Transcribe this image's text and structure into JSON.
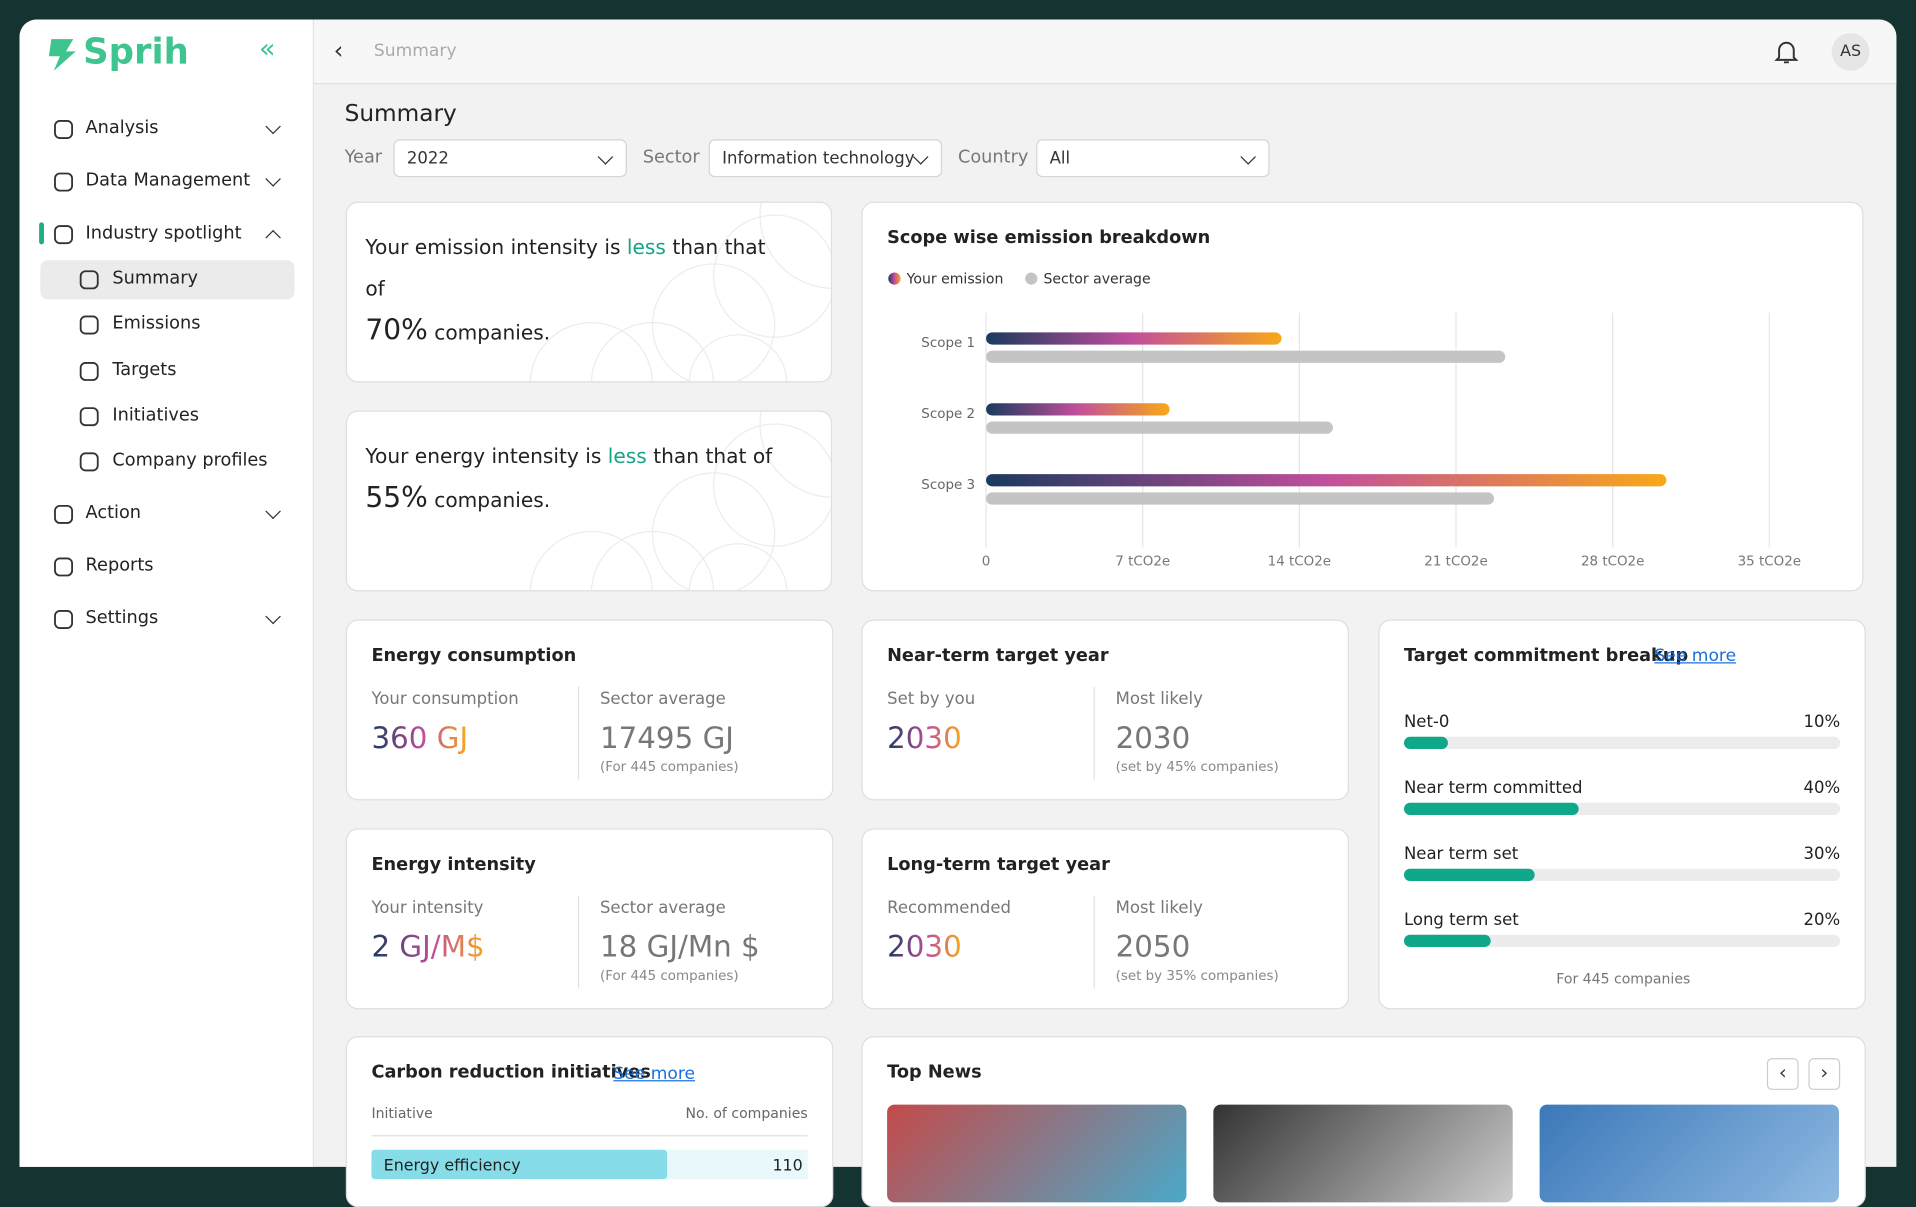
{
  "sidebar": {
    "brand": "Sprih",
    "nav": [
      "Analysis",
      "Data Management",
      "Industry spotlight"
    ],
    "subnav": [
      "Summary",
      "Emissions",
      "Targets",
      "Initiatives",
      "Company profiles"
    ],
    "nav2": [
      "Action",
      "Reports",
      "Settings"
    ]
  },
  "header": {
    "breadcrumb": "Summary",
    "avatar": "AS"
  },
  "page_title": "Summary",
  "filters": [
    {
      "label": "Year",
      "value": "2022"
    },
    {
      "label": "Sector",
      "value": "Information technology"
    },
    {
      "label": "Country",
      "value": "All"
    }
  ],
  "insights": [
    {
      "text": "Your emission intensity is",
      "highlight": "less",
      "rest": "than that of",
      "percent": "70%",
      "tail": "companies."
    },
    {
      "text": "Your energy intensity is",
      "highlight": "less",
      "rest": "than that of",
      "percent": "55%",
      "tail": "companies."
    }
  ],
  "chart_data": {
    "type": "bar",
    "orientation": "horizontal",
    "title": "Scope wise emission breakdown",
    "categories": [
      "Scope 1",
      "Scope 2",
      "Scope 3"
    ],
    "series": [
      {
        "name": "Your emission",
        "gradient": [
          "#1b3a5e",
          "#c24f9c",
          "#f9a817"
        ],
        "values": [
          13.2,
          8.2,
          30.4
        ]
      },
      {
        "name": "Sector average",
        "color": "#c4c4c4",
        "values": [
          23.2,
          15.5,
          22.7
        ]
      }
    ],
    "xlim": [
      0,
      35
    ],
    "xticks": [
      0,
      {
        "value": 7,
        "label": "7 tCO2e"
      },
      {
        "value": 14,
        "label": "14 tCO2e"
      },
      {
        "value": 21,
        "label": "21 tCO2e"
      },
      {
        "value": 28,
        "label": "28 tCO2e"
      },
      {
        "value": 35,
        "label": "35 tCO2e"
      }
    ],
    "grid": true
  },
  "metrics": [
    {
      "title": "Energy consumption",
      "left_label": "Your consumption",
      "left_value": "360 GJ",
      "right_label": "Sector average",
      "right_value": "17495 GJ",
      "right_note": "(For 445 companies)"
    },
    {
      "title": "Near-term target year",
      "left_label": "Set by you",
      "left_value": "2030",
      "right_label": "Most likely",
      "right_value": "2030",
      "right_note": "(set by 45% companies)"
    },
    {
      "title": "Energy intensity",
      "left_label": "Your intensity",
      "left_value": "2 GJ/M$",
      "right_label": "Sector average",
      "right_value": "18 GJ/Mn $",
      "right_note": "(For 445 companies)"
    },
    {
      "title": "Long-term target year",
      "left_label": "Recommended",
      "left_value": "2030",
      "right_label": "Most likely",
      "right_value": "2050",
      "right_note": "(set by 35% companies)"
    }
  ],
  "targets": {
    "title": "Target commitment breakup",
    "link": "See more",
    "color": "#0fa88a",
    "rows": [
      {
        "label": "Net-0",
        "value": 10,
        "value_label": "10%"
      },
      {
        "label": "Near term committed",
        "value": 40,
        "value_label": "40%"
      },
      {
        "label": "Near term set",
        "value": 30,
        "value_label": "30%"
      },
      {
        "label": "Long term set",
        "value": 20,
        "value_label": "20%"
      }
    ],
    "footnote": "For 445 companies"
  },
  "initiatives": {
    "title": "Carbon reduction initiatives",
    "link": "See more",
    "columns": [
      "Initiative",
      "No. of companies"
    ],
    "rows": [
      [
        "Energy efficiency",
        "110"
      ]
    ]
  },
  "news": {
    "title": "Top News"
  }
}
